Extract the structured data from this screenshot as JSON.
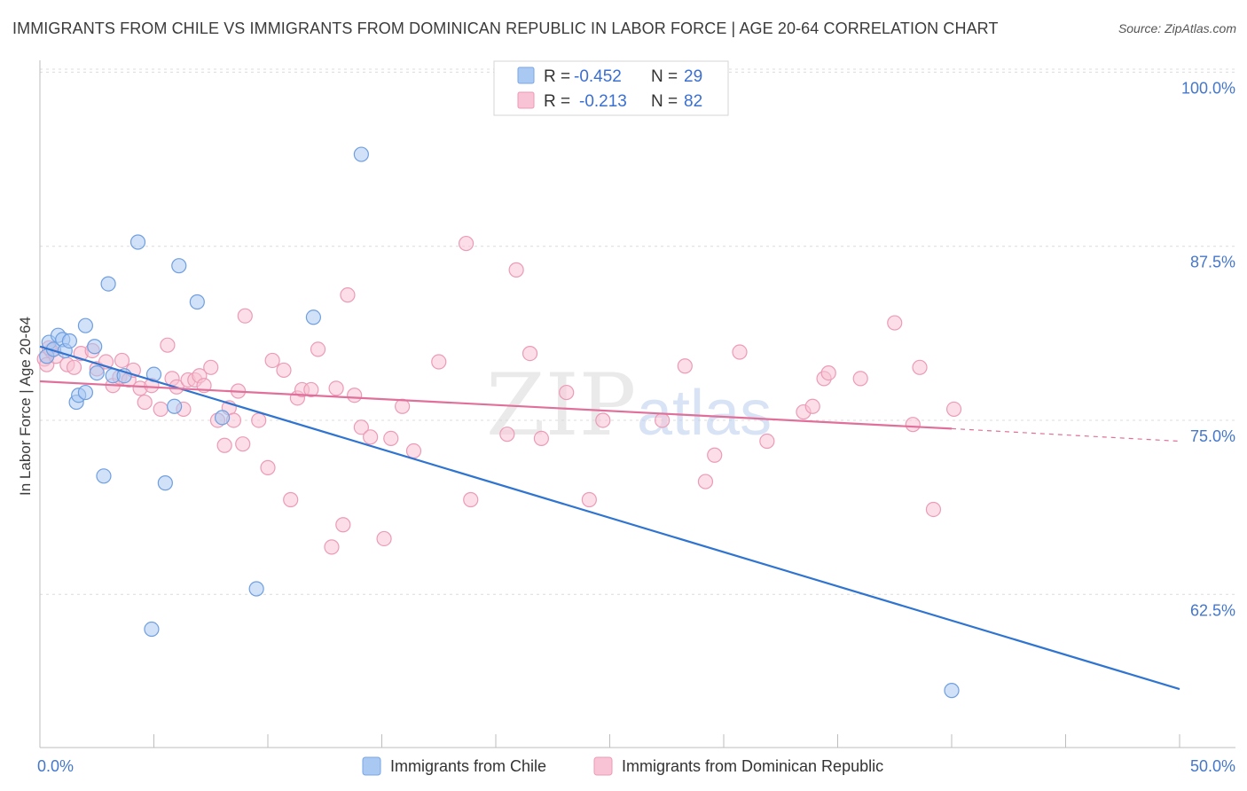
{
  "title": "IMMIGRANTS FROM CHILE VS IMMIGRANTS FROM DOMINICAN REPUBLIC IN LABOR FORCE | AGE 20-64 CORRELATION CHART",
  "source": "Source: ZipAtlas.com",
  "watermark": {
    "zip": "ZIP",
    "atlas": "atlas"
  },
  "legend": {
    "r_label": "R =",
    "n_label": "N =",
    "rows": [
      {
        "r": "-0.452",
        "n": "29",
        "color": "#a9c8f2",
        "stroke": "#7aa6e6"
      },
      {
        "r": "-0.213",
        "n": "82",
        "color": "#f8c3d4",
        "stroke": "#ee9ab6"
      }
    ]
  },
  "chart_data": {
    "type": "scatter",
    "title": "IMMIGRANTS FROM CHILE VS IMMIGRANTS FROM DOMINICAN REPUBLIC IN LABOR FORCE | AGE 20-64 CORRELATION CHART",
    "xlabel": "",
    "ylabel": "In Labor Force | Age 20-64",
    "xlim": [
      0,
      50
    ],
    "ylim": [
      51.5,
      102
    ],
    "x_tick_labels": [
      "0.0%",
      "50.0%"
    ],
    "y_ticks": [
      {
        "value": 100.0,
        "label": "100.0%"
      },
      {
        "value": 87.5,
        "label": "87.5%"
      },
      {
        "value": 75.0,
        "label": "75.0%"
      },
      {
        "value": 62.5,
        "label": "62.5%"
      }
    ],
    "grid": true,
    "legend_position": "bottom",
    "series": [
      {
        "name": "Immigrants from Chile",
        "color": "#a9c8f2",
        "stroke": "#6f9fe0",
        "line_color": "#2f74d0",
        "trend": {
          "x": [
            0.0,
            50.0
          ],
          "y": [
            80.3,
            55.7
          ]
        },
        "points": [
          [
            0.3,
            79.6
          ],
          [
            0.4,
            80.6
          ],
          [
            0.6,
            80.1
          ],
          [
            0.8,
            81.1
          ],
          [
            1.0,
            80.8
          ],
          [
            1.1,
            80.0
          ],
          [
            1.3,
            80.7
          ],
          [
            1.6,
            76.3
          ],
          [
            1.7,
            76.8
          ],
          [
            2.0,
            77.0
          ],
          [
            2.0,
            81.8
          ],
          [
            2.4,
            80.3
          ],
          [
            2.5,
            78.4
          ],
          [
            2.8,
            71.0
          ],
          [
            3.0,
            84.8
          ],
          [
            3.2,
            78.2
          ],
          [
            3.7,
            78.2
          ],
          [
            4.3,
            87.8
          ],
          [
            4.9,
            60.0
          ],
          [
            5.0,
            78.3
          ],
          [
            5.5,
            70.5
          ],
          [
            5.9,
            76.0
          ],
          [
            6.1,
            86.1
          ],
          [
            6.9,
            83.5
          ],
          [
            8.0,
            75.2
          ],
          [
            9.5,
            62.9
          ],
          [
            12.0,
            82.4
          ],
          [
            14.1,
            94.1
          ],
          [
            40.0,
            55.6
          ]
        ]
      },
      {
        "name": "Immigrants from Dominican Republic",
        "color": "#f8c3d4",
        "stroke": "#ec9bb6",
        "line_color": "#e0709a",
        "trend": {
          "x": [
            0.0,
            40.0
          ],
          "y": [
            77.8,
            74.4
          ]
        },
        "trend_dashed": {
          "x": [
            40.0,
            50.0
          ],
          "y": [
            74.4,
            73.5
          ]
        },
        "points": [
          [
            0.2,
            79.4
          ],
          [
            0.3,
            79.0
          ],
          [
            0.5,
            80.0
          ],
          [
            0.7,
            79.6
          ],
          [
            1.2,
            79.0
          ],
          [
            1.5,
            78.8
          ],
          [
            1.8,
            79.8
          ],
          [
            2.3,
            80.0
          ],
          [
            2.5,
            78.7
          ],
          [
            2.9,
            79.2
          ],
          [
            3.2,
            77.5
          ],
          [
            3.5,
            78.1
          ],
          [
            3.6,
            79.3
          ],
          [
            3.9,
            77.9
          ],
          [
            4.1,
            78.6
          ],
          [
            4.4,
            77.3
          ],
          [
            4.6,
            76.3
          ],
          [
            4.9,
            77.5
          ],
          [
            5.3,
            75.8
          ],
          [
            5.6,
            80.4
          ],
          [
            5.8,
            78.0
          ],
          [
            6.0,
            77.4
          ],
          [
            6.3,
            75.8
          ],
          [
            6.5,
            77.9
          ],
          [
            6.8,
            77.9
          ],
          [
            7.0,
            78.2
          ],
          [
            7.2,
            77.5
          ],
          [
            7.5,
            78.8
          ],
          [
            7.8,
            75.0
          ],
          [
            8.1,
            73.2
          ],
          [
            8.3,
            75.9
          ],
          [
            8.5,
            75.0
          ],
          [
            8.7,
            77.1
          ],
          [
            8.9,
            73.3
          ],
          [
            9.0,
            82.5
          ],
          [
            9.6,
            75.0
          ],
          [
            10.0,
            71.6
          ],
          [
            10.2,
            79.3
          ],
          [
            10.7,
            78.6
          ],
          [
            11.0,
            69.3
          ],
          [
            11.3,
            76.6
          ],
          [
            11.5,
            77.2
          ],
          [
            11.9,
            77.2
          ],
          [
            12.2,
            80.1
          ],
          [
            12.8,
            65.9
          ],
          [
            13.0,
            77.3
          ],
          [
            13.3,
            67.5
          ],
          [
            13.5,
            84.0
          ],
          [
            13.8,
            76.8
          ],
          [
            14.1,
            74.5
          ],
          [
            14.5,
            73.8
          ],
          [
            15.1,
            66.5
          ],
          [
            15.4,
            73.7
          ],
          [
            15.9,
            76.0
          ],
          [
            16.4,
            72.8
          ],
          [
            17.5,
            79.2
          ],
          [
            18.7,
            87.7
          ],
          [
            18.9,
            69.3
          ],
          [
            20.5,
            74.0
          ],
          [
            20.9,
            85.8
          ],
          [
            21.5,
            79.8
          ],
          [
            22.0,
            73.7
          ],
          [
            23.1,
            77.0
          ],
          [
            24.1,
            69.3
          ],
          [
            24.7,
            75.0
          ],
          [
            27.3,
            75.0
          ],
          [
            28.3,
            78.9
          ],
          [
            29.2,
            70.6
          ],
          [
            29.6,
            72.5
          ],
          [
            30.7,
            79.9
          ],
          [
            31.9,
            73.5
          ],
          [
            33.5,
            75.6
          ],
          [
            33.9,
            76.0
          ],
          [
            34.4,
            78.0
          ],
          [
            34.6,
            78.4
          ],
          [
            36.0,
            78.0
          ],
          [
            37.5,
            82.0
          ],
          [
            38.3,
            74.7
          ],
          [
            38.6,
            78.8
          ],
          [
            39.2,
            68.6
          ],
          [
            40.1,
            75.8
          ],
          [
            0.4,
            80.2
          ]
        ]
      }
    ]
  }
}
